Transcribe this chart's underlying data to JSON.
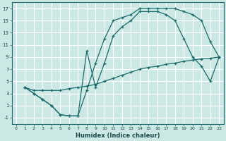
{
  "bg_color": "#cce8e5",
  "grid_color": "#b0d8d4",
  "line_color": "#1a6b6b",
  "xlabel": "Humidex (Indice chaleur)",
  "xlim": [
    -0.5,
    23.5
  ],
  "ylim": [
    -2,
    18
  ],
  "xticks": [
    0,
    1,
    2,
    3,
    4,
    5,
    6,
    7,
    8,
    9,
    10,
    11,
    12,
    13,
    14,
    15,
    16,
    17,
    18,
    19,
    20,
    21,
    22,
    23
  ],
  "yticks": [
    -1,
    1,
    3,
    5,
    7,
    9,
    11,
    13,
    15,
    17
  ],
  "curve1_x": [
    1,
    2,
    3,
    4,
    5,
    6,
    7,
    8,
    9,
    10,
    11,
    12,
    13,
    14,
    15,
    16,
    17,
    18,
    19,
    20,
    21,
    22,
    23
  ],
  "curve1_y": [
    4,
    3,
    2,
    1,
    -0.5,
    -0.7,
    -0.7,
    3.5,
    8,
    12,
    15,
    15.5,
    16,
    17,
    17,
    17,
    17,
    17,
    16.5,
    16,
    15,
    11.5,
    9
  ],
  "curve2_x": [
    1,
    2,
    3,
    4,
    5,
    6,
    7,
    8,
    9,
    10,
    11,
    12,
    13,
    14,
    15,
    16,
    17,
    18,
    19,
    20,
    21,
    22,
    23
  ],
  "curve2_y": [
    4,
    3,
    2,
    1,
    -0.5,
    -0.7,
    -0.7,
    10,
    4,
    8,
    12.5,
    14,
    15,
    16.5,
    16.5,
    16.5,
    16,
    15,
    12,
    9,
    7.5,
    5,
    9
  ],
  "curve3_x": [
    1,
    2,
    3,
    4,
    5,
    6,
    7,
    8,
    9,
    10,
    11,
    12,
    13,
    14,
    15,
    16,
    17,
    18,
    19,
    20,
    21,
    22,
    23
  ],
  "curve3_y": [
    4,
    3.5,
    3.5,
    3.5,
    3.5,
    3.8,
    4,
    4.2,
    4.5,
    5,
    5.5,
    6,
    6.5,
    7,
    7.3,
    7.5,
    7.8,
    8,
    8.3,
    8.5,
    8.7,
    8.8,
    9
  ]
}
